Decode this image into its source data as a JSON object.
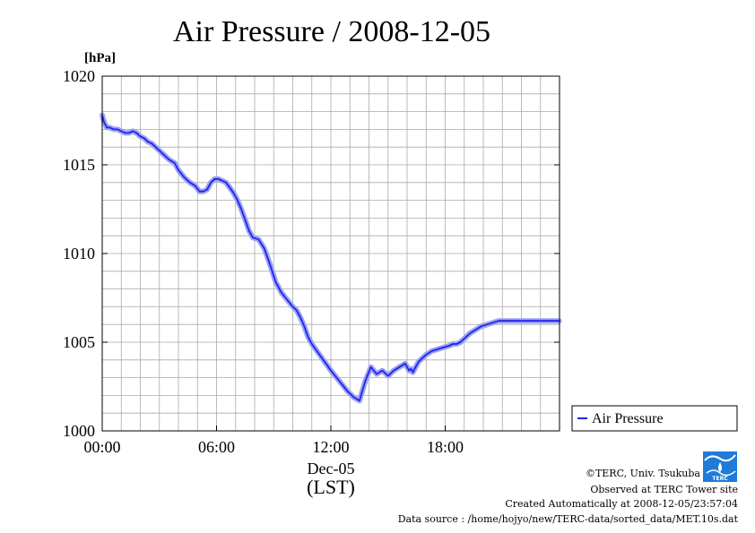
{
  "page": {
    "title": "Air Pressure / 2008-12-05",
    "unit_label": "[hPa]",
    "x_date_label": "Dec-05",
    "x_axis_label": "(LST)",
    "legend_label": "Air Pressure",
    "footer": {
      "copyright": "©TERC, Univ. Tsukuba",
      "observed": "Observed at TERC Tower site",
      "created": "Created Automatically at 2008-12-05/23:57:04",
      "source": "Data source : /home/hojyo/new/TERC-data/sorted_data/MET.10s.dat"
    },
    "logo_text": "TERC"
  },
  "chart_data": {
    "type": "line",
    "title": "Air Pressure / 2008-12-05",
    "ylabel": "[hPa]",
    "xlabel": "(LST)",
    "xlim": [
      0,
      24
    ],
    "ylim": [
      1000,
      1020
    ],
    "y_ticks": [
      1000,
      1005,
      1010,
      1015,
      1020
    ],
    "x_ticks": [
      0,
      6,
      12,
      18
    ],
    "x_tick_labels": [
      "00:00",
      "06:00",
      "12:00",
      "18:00"
    ],
    "grid": true,
    "legend_position": "right",
    "colors": {
      "line": "#2222ee",
      "band": "#9aa4f2",
      "grid": "#aaaaaa"
    },
    "series": [
      {
        "name": "Air Pressure",
        "x": [
          0.0,
          0.1,
          0.25,
          0.4,
          0.6,
          0.8,
          1.0,
          1.2,
          1.4,
          1.6,
          1.8,
          2.0,
          2.2,
          2.4,
          2.6,
          2.8,
          3.0,
          3.2,
          3.5,
          3.8,
          4.0,
          4.3,
          4.6,
          4.9,
          5.1,
          5.3,
          5.5,
          5.7,
          5.9,
          6.1,
          6.3,
          6.5,
          6.7,
          6.9,
          7.1,
          7.3,
          7.5,
          7.7,
          7.9,
          8.2,
          8.5,
          8.8,
          9.1,
          9.4,
          9.7,
          10.0,
          10.2,
          10.4,
          10.6,
          10.8,
          11.0,
          11.2,
          11.4,
          11.6,
          11.8,
          12.0,
          12.3,
          12.6,
          12.9,
          13.2,
          13.5,
          13.8,
          14.1,
          14.4,
          14.7,
          15.0,
          15.3,
          15.6,
          15.9,
          16.0,
          16.1,
          16.2,
          16.3,
          16.4,
          16.6,
          16.8,
          17.0,
          17.3,
          17.6,
          17.9,
          18.2,
          18.4,
          18.6,
          18.8,
          19.0,
          19.3,
          19.6,
          19.9,
          20.2,
          20.5,
          20.8,
          21.1,
          21.4,
          21.7,
          22.0,
          22.3,
          22.6,
          22.9,
          23.2,
          23.5,
          23.8,
          23.98
        ],
        "values": [
          1017.8,
          1017.4,
          1017.1,
          1017.1,
          1017.0,
          1017.0,
          1016.9,
          1016.8,
          1016.8,
          1016.9,
          1016.8,
          1016.6,
          1016.5,
          1016.3,
          1016.2,
          1016.0,
          1015.8,
          1015.6,
          1015.3,
          1015.1,
          1014.7,
          1014.3,
          1014.0,
          1013.8,
          1013.5,
          1013.5,
          1013.6,
          1014.0,
          1014.2,
          1014.2,
          1014.1,
          1014.0,
          1013.7,
          1013.4,
          1013.0,
          1012.5,
          1011.9,
          1011.3,
          1010.9,
          1010.8,
          1010.3,
          1009.4,
          1008.4,
          1007.8,
          1007.4,
          1007.0,
          1006.8,
          1006.4,
          1005.9,
          1005.3,
          1004.9,
          1004.6,
          1004.3,
          1004.0,
          1003.7,
          1003.4,
          1003.0,
          1002.6,
          1002.2,
          1001.9,
          1001.7,
          1002.8,
          1003.6,
          1003.2,
          1003.4,
          1003.1,
          1003.4,
          1003.6,
          1003.8,
          1003.6,
          1003.4,
          1003.5,
          1003.3,
          1003.5,
          1003.9,
          1004.1,
          1004.3,
          1004.5,
          1004.6,
          1004.7,
          1004.8,
          1004.9,
          1004.9,
          1005.0,
          1005.2,
          1005.5,
          1005.7,
          1005.9,
          1006.0,
          1006.1,
          1006.2,
          1006.2,
          1006.2,
          1006.2,
          1006.2,
          1006.2,
          1006.2,
          1006.2,
          1006.2,
          1006.2,
          1006.2,
          1006.2
        ]
      }
    ]
  }
}
